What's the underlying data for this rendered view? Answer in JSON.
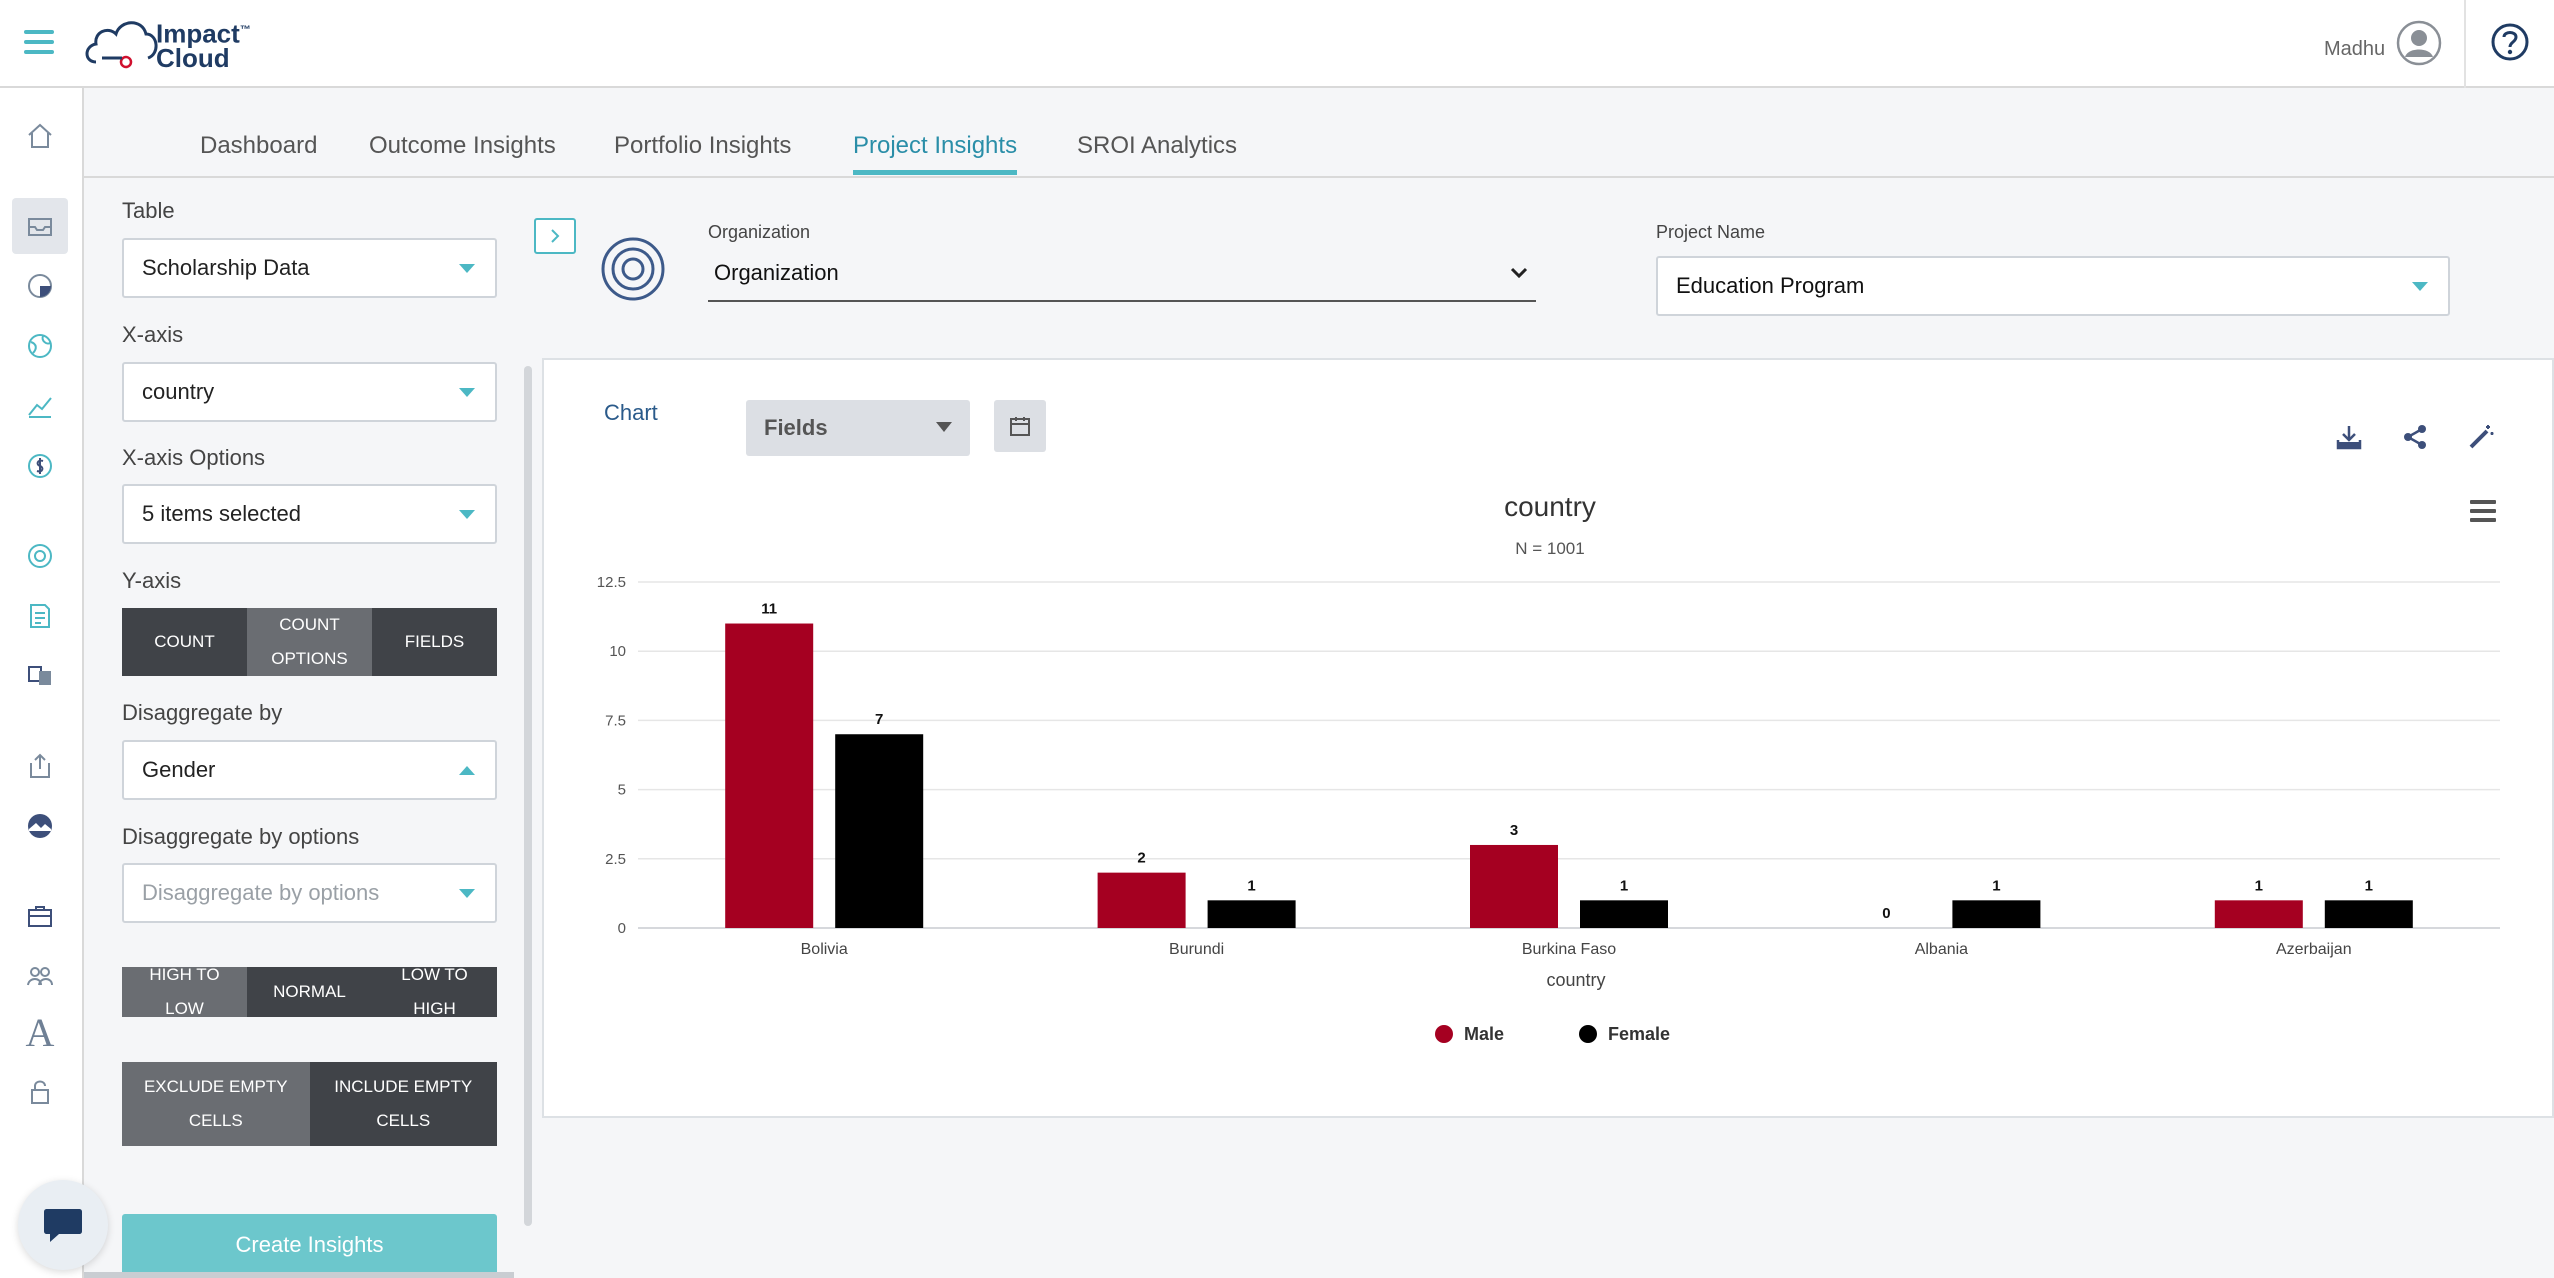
{
  "header": {
    "logo_line1": "Impact",
    "logo_tm": "™",
    "logo_line2": "Cloud",
    "user_name": "Madhu"
  },
  "tabs": [
    {
      "label": "Dashboard"
    },
    {
      "label": "Outcome Insights"
    },
    {
      "label": "Portfolio Insights"
    },
    {
      "label": "Project Insights",
      "active": true
    },
    {
      "label": "SROI Analytics"
    }
  ],
  "config": {
    "table_label": "Table",
    "table_value": "Scholarship Data",
    "xaxis_label": "X-axis",
    "xaxis_value": "country",
    "xaxis_options_label": "X-axis Options",
    "xaxis_options_value": "5 items selected",
    "yaxis_label": "Y-axis",
    "yaxis_buttons": [
      "COUNT",
      "COUNT OPTIONS",
      "FIELDS"
    ],
    "disaggregate_label": "Disaggregate by",
    "disaggregate_value": "Gender",
    "disaggregate_options_label": "Disaggregate by options",
    "disaggregate_options_placeholder": "Disaggregate by options",
    "sort_buttons": [
      "HIGH TO LOW",
      "NORMAL",
      "LOW TO HIGH"
    ],
    "empty_buttons": [
      "EXCLUDE EMPTY CELLS",
      "INCLUDE EMPTY CELLS"
    ],
    "create_button": "Create Insights"
  },
  "filters": {
    "organization_label": "Organization",
    "organization_value": "Organization",
    "project_label": "Project Name",
    "project_value": "Education Program"
  },
  "chart_panel": {
    "chart_tab": "Chart",
    "fields_dropdown": "Fields"
  },
  "colors": {
    "accent": "#4cb8c4",
    "male": "#a50021",
    "female": "#000000"
  },
  "chart_data": {
    "type": "bar",
    "title": "country",
    "subtitle": "N = 1001",
    "xlabel": "country",
    "ylabel": "",
    "categories": [
      "Bolivia",
      "Burundi",
      "Burkina Faso",
      "Albania",
      "Azerbaijan"
    ],
    "series": [
      {
        "name": "Male",
        "color": "#a50021",
        "values": [
          11,
          2,
          3,
          0,
          1
        ]
      },
      {
        "name": "Female",
        "color": "#000000",
        "values": [
          7,
          1,
          1,
          1,
          1
        ]
      }
    ],
    "ylim": [
      0,
      12.5
    ],
    "yticks": [
      "0",
      "2.5",
      "5",
      "7.5",
      "10",
      "12.5"
    ],
    "grid": true,
    "legend": "bottom-center",
    "data_labels": true
  }
}
